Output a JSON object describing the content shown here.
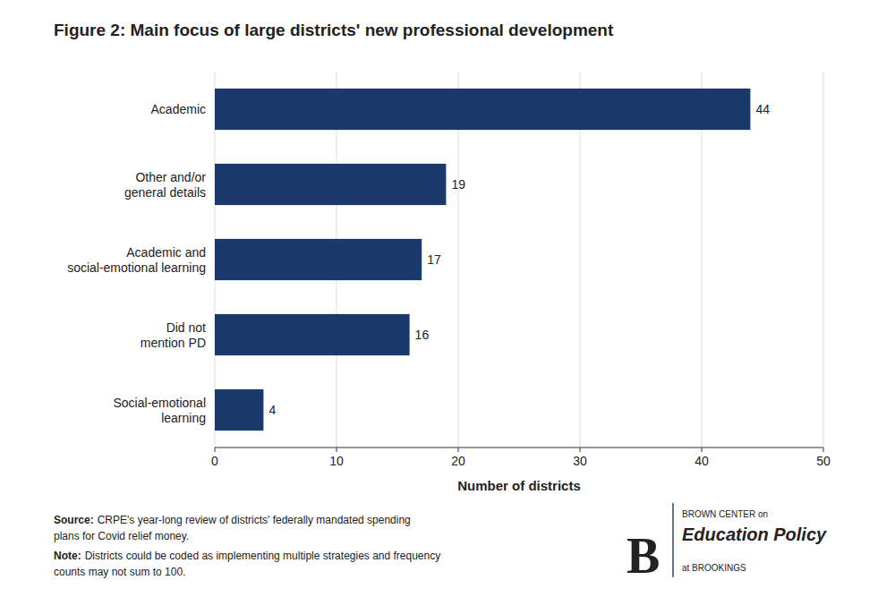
{
  "chart_data": {
    "type": "bar",
    "orientation": "horizontal",
    "title": "Figure 2: Main focus of large districts' new professional development",
    "categories": [
      "Social-emotional\nlearning",
      "Did not\nmention PD",
      "Academic and\nsocial-emotional learning",
      "Other and/or\ngeneral details",
      "Academic"
    ],
    "values": [
      4,
      16,
      17,
      19,
      44
    ],
    "color": "#1a3a6b",
    "data_labels": true,
    "xlabel": "Number of districts",
    "xlim": [
      0,
      50
    ],
    "xticks": [
      0,
      10,
      20,
      30,
      40,
      50
    ],
    "grid": true,
    "source": [
      "Source:",
      "CRPE's year-long review of districts' federally mandated spending",
      "plans for Covid relief money."
    ],
    "note": [
      "Note:",
      "Districts could be coded as implementing multiple strategies and frequency",
      "counts may not sum to 100."
    ],
    "logo": [
      "B",
      "BROWN CENTER on",
      "Education Policy",
      "at BROOKINGS"
    ]
  }
}
